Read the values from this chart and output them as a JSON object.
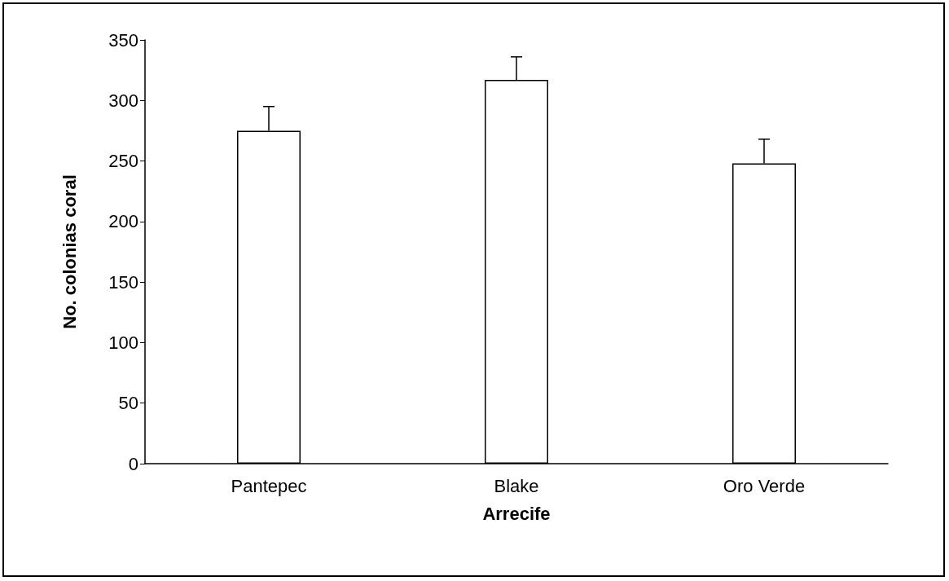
{
  "chart_data": {
    "type": "bar",
    "xlabel": "Arrecife",
    "ylabel": "No. colonias coral",
    "categories": [
      "Pantepec",
      "Blake",
      "Oro Verde"
    ],
    "values": [
      275,
      317,
      248
    ],
    "errors": [
      [
        275,
        295
      ],
      [
        317,
        336
      ],
      [
        248,
        268
      ]
    ],
    "color": "#ffffff",
    "ylim": [
      0,
      350
    ],
    "yticks": [
      0,
      50,
      100,
      150,
      200,
      250,
      300,
      350
    ],
    "grid": false
  }
}
